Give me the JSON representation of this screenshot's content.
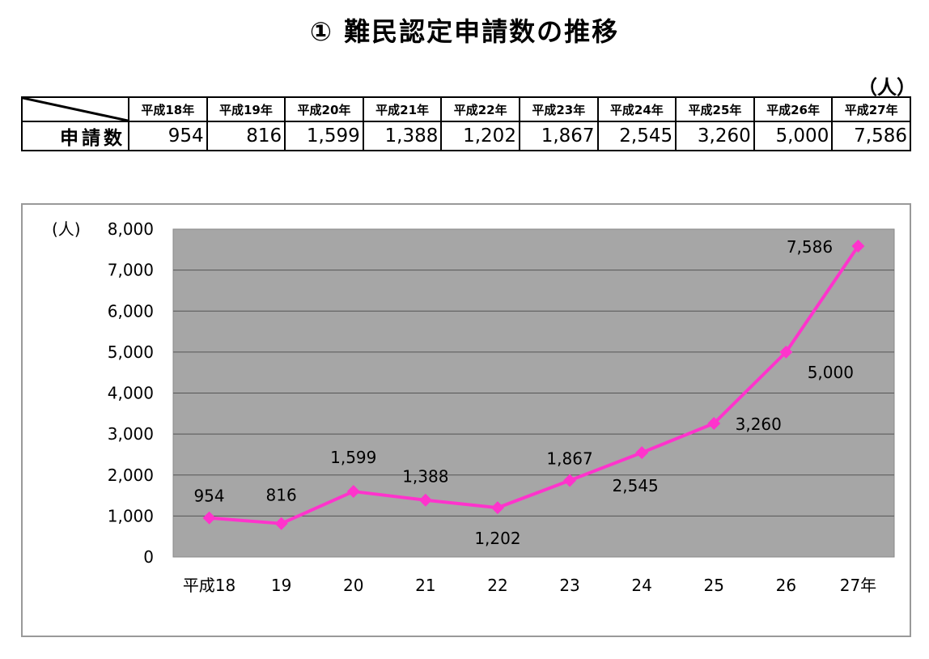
{
  "title": "① 難民認定申請数の推移",
  "table": {
    "unit": "（人）",
    "row_label": "申請数",
    "headers": [
      "平成18年",
      "平成19年",
      "平成20年",
      "平成21年",
      "平成22年",
      "平成23年",
      "平成24年",
      "平成25年",
      "平成26年",
      "平成27年"
    ],
    "values": [
      "954",
      "816",
      "1,599",
      "1,388",
      "1,202",
      "1,867",
      "2,545",
      "3,260",
      "5,000",
      "7,586"
    ]
  },
  "chart_data": {
    "type": "line",
    "y_unit_label": "(人)",
    "categories": [
      "平成18",
      "19",
      "20",
      "21",
      "22",
      "23",
      "24",
      "25",
      "26",
      "27年"
    ],
    "series": [
      {
        "values": [
          954,
          816,
          1599,
          1388,
          1202,
          1867,
          2545,
          3260,
          5000,
          7586
        ],
        "color": "#ff33cc"
      }
    ],
    "data_labels": [
      "954",
      "816",
      "1,599",
      "1,388",
      "1,202",
      "1,867",
      "2,545",
      "3,260",
      "5,000",
      "7,586"
    ],
    "yticks": [
      "0",
      "1,000",
      "2,000",
      "3,000",
      "4,000",
      "5,000",
      "6,000",
      "7,000",
      "8,000"
    ],
    "ylim": [
      0,
      8000
    ],
    "grid": true,
    "plot_background": "#a6a6a6",
    "marker": "diamond"
  }
}
